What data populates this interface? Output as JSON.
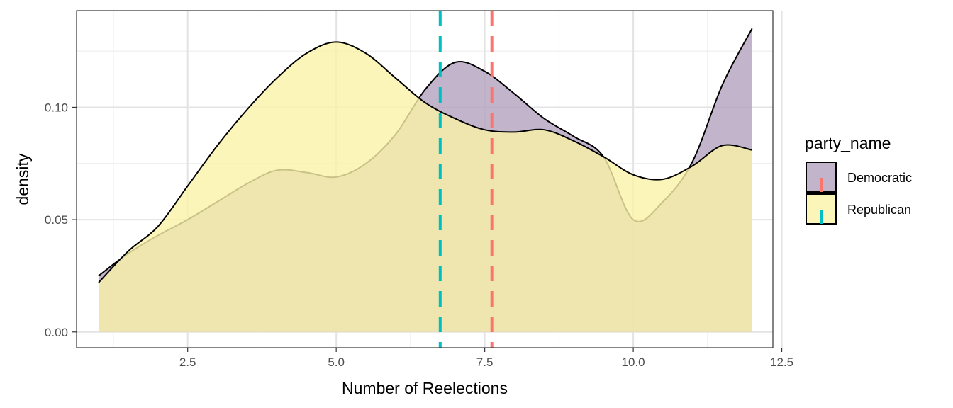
{
  "chart_data": {
    "type": "area",
    "title": "",
    "xlabel": "Number of Reelections",
    "ylabel": "density",
    "xlim": [
      0.63,
      12.35
    ],
    "ylim": [
      -0.007,
      0.143
    ],
    "x_ticks": [
      2.5,
      5.0,
      7.5,
      10.0,
      12.5
    ],
    "x_tick_labels": [
      "2.5",
      "5.0",
      "7.5",
      "10.0",
      "12.5"
    ],
    "y_ticks": [
      0.0,
      0.05,
      0.1
    ],
    "y_tick_labels": [
      "0.00",
      "0.05",
      "0.10"
    ],
    "grid": true,
    "legend": {
      "title": "party_name",
      "position": "right"
    },
    "series": [
      {
        "name": "Democratic",
        "fill": "#b3a2be",
        "mean_line_color": "#f8766d",
        "mean": 7.62,
        "points": [
          [
            1.0,
            0.025
          ],
          [
            1.5,
            0.035
          ],
          [
            2.0,
            0.043
          ],
          [
            2.5,
            0.05
          ],
          [
            3.0,
            0.058
          ],
          [
            3.5,
            0.066
          ],
          [
            4.0,
            0.072
          ],
          [
            4.5,
            0.071
          ],
          [
            5.0,
            0.069
          ],
          [
            5.5,
            0.075
          ],
          [
            6.0,
            0.088
          ],
          [
            6.5,
            0.108
          ],
          [
            7.0,
            0.12
          ],
          [
            7.5,
            0.116
          ],
          [
            8.0,
            0.106
          ],
          [
            8.5,
            0.095
          ],
          [
            9.0,
            0.087
          ],
          [
            9.5,
            0.078
          ],
          [
            10.0,
            0.05
          ],
          [
            10.5,
            0.058
          ],
          [
            11.0,
            0.076
          ],
          [
            11.5,
            0.11
          ],
          [
            12.0,
            0.135
          ]
        ]
      },
      {
        "name": "Republican",
        "fill": "#faf3a8",
        "mean_line_color": "#00bfc4",
        "mean": 6.75,
        "points": [
          [
            1.0,
            0.022
          ],
          [
            1.5,
            0.036
          ],
          [
            2.0,
            0.047
          ],
          [
            2.5,
            0.065
          ],
          [
            3.0,
            0.083
          ],
          [
            3.5,
            0.099
          ],
          [
            4.0,
            0.113
          ],
          [
            4.5,
            0.124
          ],
          [
            5.0,
            0.129
          ],
          [
            5.5,
            0.124
          ],
          [
            6.0,
            0.113
          ],
          [
            6.5,
            0.102
          ],
          [
            7.0,
            0.095
          ],
          [
            7.5,
            0.09
          ],
          [
            8.0,
            0.089
          ],
          [
            8.5,
            0.09
          ],
          [
            9.0,
            0.085
          ],
          [
            9.5,
            0.078
          ],
          [
            10.0,
            0.07
          ],
          [
            10.5,
            0.068
          ],
          [
            11.0,
            0.074
          ],
          [
            11.5,
            0.083
          ],
          [
            12.0,
            0.081
          ]
        ]
      }
    ]
  }
}
